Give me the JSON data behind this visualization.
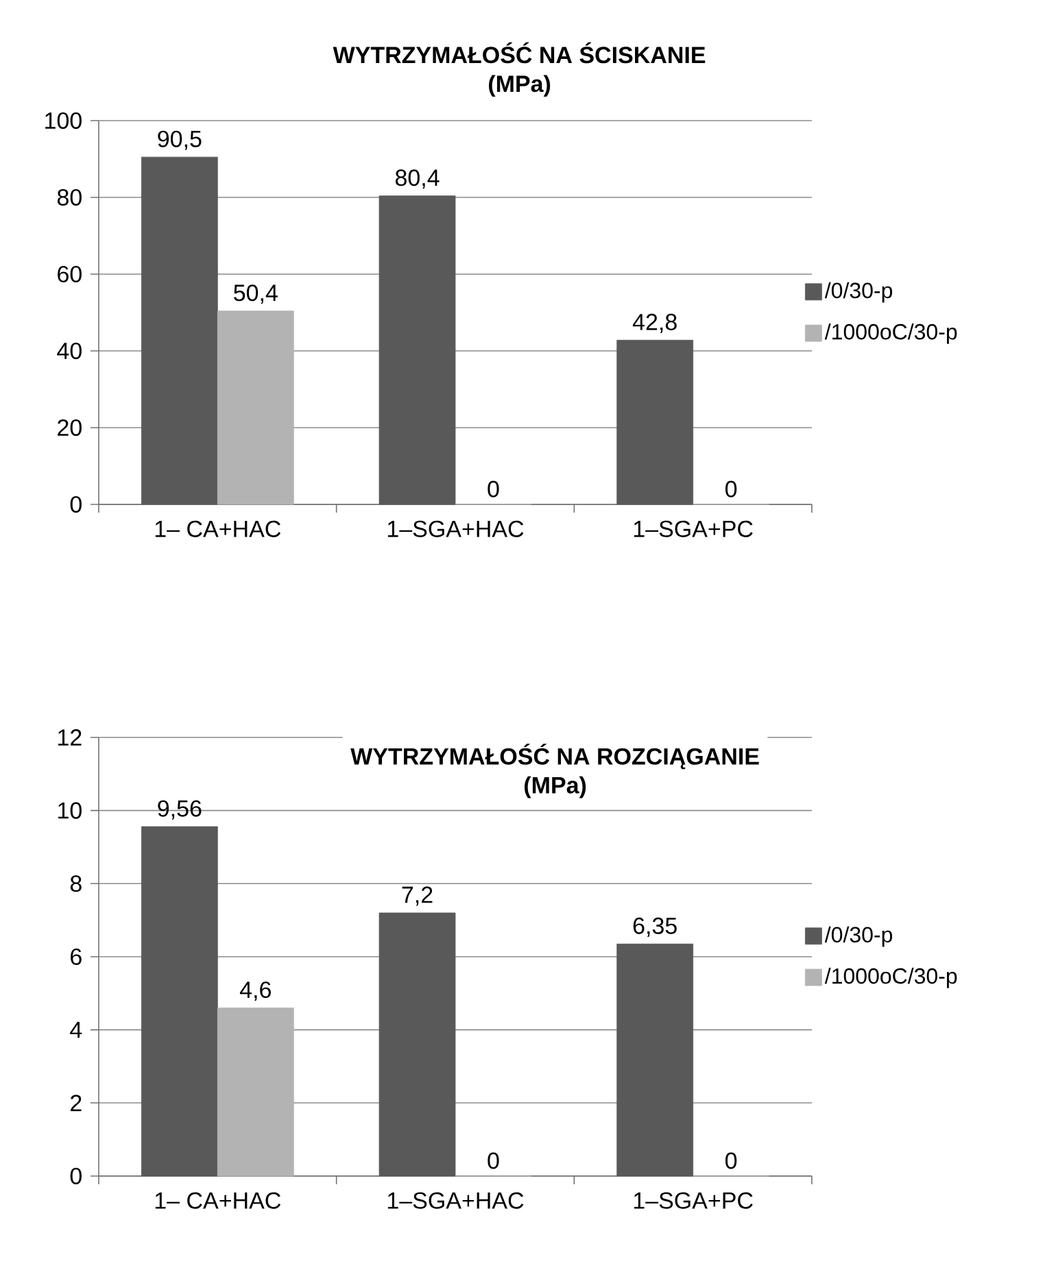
{
  "chart_data": [
    {
      "type": "bar",
      "title": "WYTRZYMAŁOŚĆ NA ŚCISKANIE",
      "subtitle": "(MPa)",
      "categories": [
        "1– CA+HAC",
        "1–SGA+HAC",
        "1–SGA+PC"
      ],
      "ylim": [
        0,
        100
      ],
      "yticks": [
        0,
        20,
        40,
        60,
        80,
        100
      ],
      "grid": "y",
      "legend": "right",
      "series": [
        {
          "name": "/0/30-p",
          "color": "#595959",
          "values": [
            90.5,
            80.4,
            42.8
          ],
          "value_labels": [
            "90,5",
            "80,4",
            "42,8"
          ]
        },
        {
          "name": "/1000oC/30-p",
          "color": "#b3b3b3",
          "values": [
            50.4,
            0,
            0
          ],
          "value_labels": [
            "50,4",
            "0",
            "0"
          ]
        }
      ]
    },
    {
      "type": "bar",
      "title": "WYTRZYMAŁOŚĆ NA ROZCIĄGANIE",
      "subtitle": "(MPa)",
      "categories": [
        "1– CA+HAC",
        "1–SGA+HAC",
        "1–SGA+PC"
      ],
      "ylim": [
        0,
        12
      ],
      "yticks": [
        0,
        2,
        4,
        6,
        8,
        10,
        12
      ],
      "grid": "y",
      "legend": "right",
      "series": [
        {
          "name": "/0/30-p",
          "color": "#595959",
          "values": [
            9.56,
            7.2,
            6.35
          ],
          "value_labels": [
            "9,56",
            "7,2",
            "6,35"
          ]
        },
        {
          "name": "/1000oC/30-p",
          "color": "#b3b3b3",
          "values": [
            4.6,
            0,
            0
          ],
          "value_labels": [
            "4,6",
            "0",
            "0"
          ]
        }
      ]
    }
  ]
}
